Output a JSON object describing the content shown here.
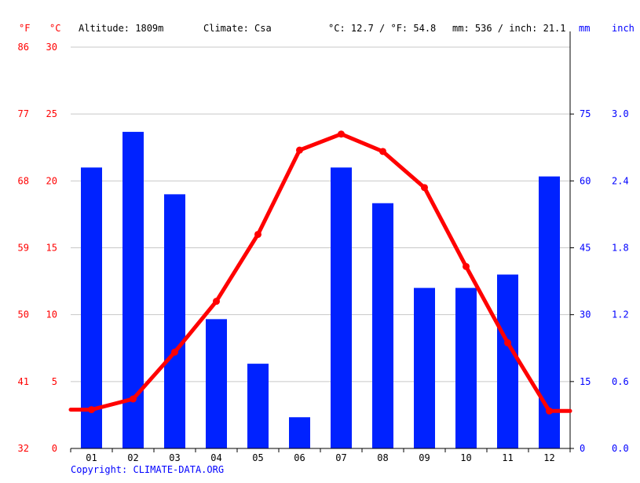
{
  "header": {
    "f_unit": "°F",
    "c_unit": "°C",
    "altitude": "Altitude: 1809m",
    "climate": "Climate: Csa",
    "temp_avg": "°C: 12.7 / °F: 54.8",
    "precip_total": "mm: 536 / inch: 21.1",
    "mm_unit": "mm",
    "inch_unit": "inch"
  },
  "copyright": "Copyright: CLIMATE-DATA.ORG",
  "chart_data": {
    "type": "bar",
    "categories": [
      "01",
      "02",
      "03",
      "04",
      "05",
      "06",
      "07",
      "08",
      "09",
      "10",
      "11",
      "12"
    ],
    "series": [
      {
        "type": "bar",
        "axis": "precipitation_mm",
        "values": [
          63,
          71,
          57,
          29,
          19,
          7,
          63,
          55,
          36,
          36,
          39,
          61
        ],
        "color": "#0022ff"
      },
      {
        "type": "line",
        "axis": "temperature_c",
        "values": [
          2.9,
          3.7,
          7.2,
          11.0,
          16.0,
          22.3,
          23.5,
          22.2,
          19.5,
          13.6,
          7.9,
          2.8
        ],
        "color": "#ff0000"
      }
    ],
    "axes": {
      "left_c": {
        "ticks": [
          "30",
          "25",
          "20",
          "15",
          "10",
          "5",
          "0"
        ],
        "range": [
          0,
          30
        ]
      },
      "left_f": {
        "ticks": [
          "86",
          "77",
          "68",
          "59",
          "50",
          "41",
          "32"
        ]
      },
      "right_mm": {
        "ticks": [
          "75",
          "60",
          "45",
          "30",
          "15",
          "0"
        ],
        "range": [
          0,
          90
        ]
      },
      "right_inch": {
        "ticks": [
          "3.0",
          "2.4",
          "1.8",
          "1.2",
          "0.6",
          "0.0"
        ]
      }
    },
    "grid": true
  }
}
